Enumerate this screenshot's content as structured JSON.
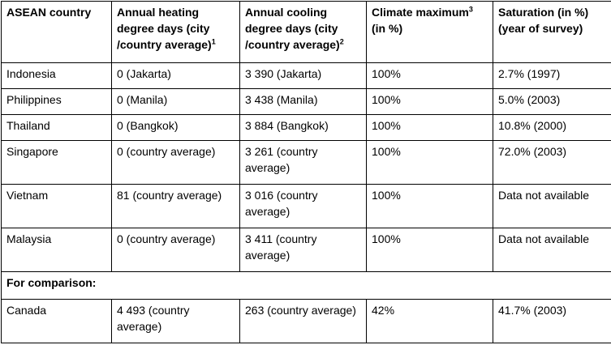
{
  "table": {
    "headers": [
      {
        "text": "ASEAN country",
        "sup": ""
      },
      {
        "text": "Annual heating degree days (city /country average)",
        "sup": "1"
      },
      {
        "text": "Annual cooling degree days (city /country average)",
        "sup": "2"
      },
      {
        "text_before": "Climate maximum",
        "sup": "3",
        "text_after": " (in %)"
      },
      {
        "text": "Saturation  (in  %) (year of survey)",
        "sup": ""
      }
    ],
    "rows": [
      [
        "Indonesia",
        "0 (Jakarta)",
        "3 390 (Jakarta)",
        "100%",
        "2.7% (1997)"
      ],
      [
        "Philippines",
        "0 (Manila)",
        "3 438 (Manila)",
        "100%",
        "5.0% (2003)"
      ],
      [
        "Thailand",
        "0 (Bangkok)",
        "3 884 (Bangkok)",
        "100%",
        "10.8% (2000)"
      ],
      [
        "Singapore",
        "0 (country average)",
        "3 261 (country average)",
        "100%",
        "72.0% (2003)"
      ],
      [
        "Vietnam",
        "81 (country average)",
        "3 016 (country average)",
        "100%",
        "Data not available"
      ],
      [
        "Malaysia",
        "0 (country average)",
        "3 411 (country average)",
        "100%",
        "Data not available"
      ]
    ],
    "comparison_label": "For comparison:",
    "comparison_rows": [
      [
        "Canada",
        "4 493 (country average)",
        "263 (country average)",
        "42%",
        "41.7% (2003)"
      ]
    ]
  }
}
